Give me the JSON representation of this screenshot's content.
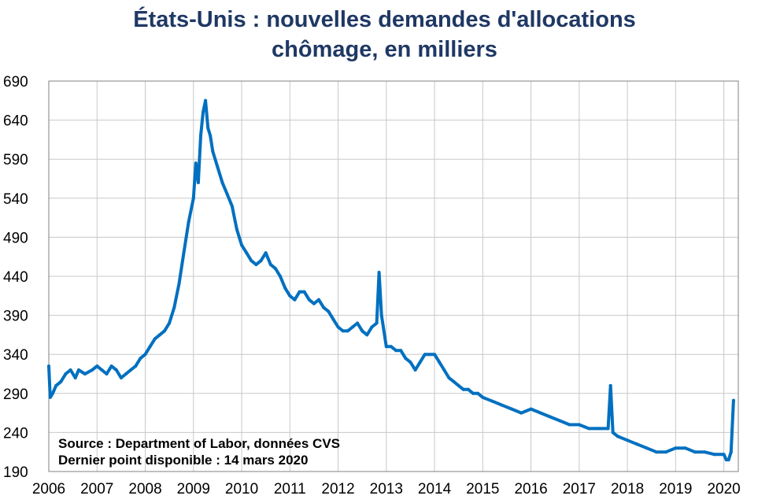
{
  "chart_data": {
    "type": "line",
    "title_line1": "États-Unis : nouvelles demandes d'allocations",
    "title_line2": "chômage, en milliers",
    "xlabel": "",
    "ylabel": "",
    "xlim": [
      2006,
      2020.3
    ],
    "ylim": [
      190,
      690
    ],
    "yticks": [
      "190",
      "240",
      "290",
      "340",
      "390",
      "440",
      "490",
      "540",
      "590",
      "640",
      "690"
    ],
    "xticks": [
      "2006",
      "2007",
      "2008",
      "2009",
      "2010",
      "2011",
      "2012",
      "2013",
      "2014",
      "2015",
      "2016",
      "2017",
      "2018",
      "2019",
      "2020"
    ],
    "grid": true,
    "legend": "none",
    "annotation_source": "Source : Department of Labor, données CVS",
    "annotation_last": "Dernier point disponible : 14 mars 2020",
    "line_color": "#0070c0",
    "series": [
      {
        "x": [
          2006.0,
          2006.03,
          2006.08,
          2006.15,
          2006.25,
          2006.35,
          2006.45,
          2006.55,
          2006.62,
          2006.75,
          2006.9,
          2007.0,
          2007.1,
          2007.2,
          2007.3,
          2007.4,
          2007.5,
          2007.6,
          2007.7,
          2007.8,
          2007.9,
          2008.0,
          2008.1,
          2008.2,
          2008.3,
          2008.4,
          2008.5,
          2008.6,
          2008.7,
          2008.8,
          2008.9,
          2009.0,
          2009.05,
          2009.1,
          2009.15,
          2009.2,
          2009.25,
          2009.3,
          2009.35,
          2009.4,
          2009.5,
          2009.6,
          2009.7,
          2009.8,
          2009.9,
          2010.0,
          2010.1,
          2010.2,
          2010.3,
          2010.4,
          2010.5,
          2010.6,
          2010.7,
          2010.8,
          2010.9,
          2011.0,
          2011.1,
          2011.2,
          2011.3,
          2011.4,
          2011.5,
          2011.6,
          2011.7,
          2011.8,
          2011.9,
          2012.0,
          2012.1,
          2012.2,
          2012.3,
          2012.4,
          2012.5,
          2012.6,
          2012.7,
          2012.8,
          2012.85,
          2012.9,
          2013.0,
          2013.1,
          2013.2,
          2013.3,
          2013.4,
          2013.5,
          2013.6,
          2013.7,
          2013.8,
          2013.9,
          2014.0,
          2014.1,
          2014.2,
          2014.3,
          2014.4,
          2014.5,
          2014.6,
          2014.7,
          2014.8,
          2014.9,
          2015.0,
          2015.2,
          2015.4,
          2015.6,
          2015.8,
          2016.0,
          2016.2,
          2016.4,
          2016.6,
          2016.8,
          2017.0,
          2017.2,
          2017.4,
          2017.6,
          2017.65,
          2017.7,
          2017.8,
          2018.0,
          2018.2,
          2018.4,
          2018.6,
          2018.8,
          2019.0,
          2019.2,
          2019.4,
          2019.6,
          2019.8,
          2020.0,
          2020.05,
          2020.1,
          2020.15,
          2020.2
        ],
        "values": [
          325,
          285,
          290,
          300,
          305,
          315,
          320,
          310,
          320,
          315,
          320,
          325,
          320,
          315,
          325,
          320,
          310,
          315,
          320,
          325,
          335,
          340,
          350,
          360,
          365,
          370,
          380,
          400,
          430,
          470,
          510,
          540,
          585,
          560,
          620,
          650,
          665,
          630,
          620,
          600,
          580,
          560,
          545,
          530,
          500,
          480,
          470,
          460,
          455,
          460,
          470,
          455,
          450,
          440,
          425,
          415,
          410,
          420,
          420,
          410,
          405,
          410,
          400,
          395,
          385,
          375,
          370,
          370,
          375,
          380,
          370,
          365,
          375,
          380,
          445,
          390,
          350,
          350,
          345,
          345,
          335,
          330,
          320,
          330,
          340,
          340,
          340,
          330,
          320,
          310,
          305,
          300,
          295,
          295,
          290,
          290,
          285,
          280,
          275,
          270,
          265,
          270,
          265,
          260,
          255,
          250,
          250,
          245,
          245,
          245,
          300,
          240,
          235,
          230,
          225,
          220,
          215,
          215,
          220,
          220,
          215,
          215,
          212,
          212,
          205,
          205,
          215,
          281
        ]
      }
    ]
  }
}
